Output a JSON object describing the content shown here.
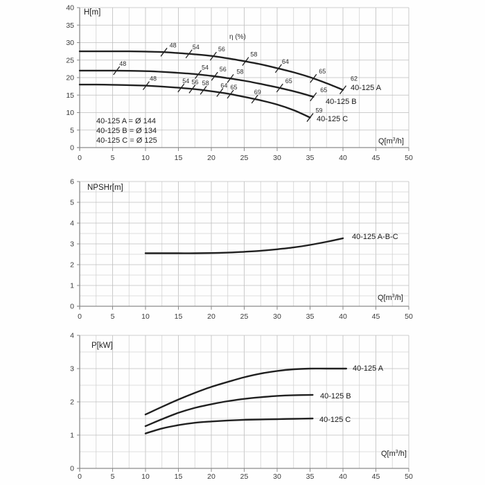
{
  "chart_data": [
    {
      "type": "line",
      "title": "H[m]",
      "ylabel": "H[m]",
      "xlabel": "Q[m3/h]",
      "xlabel_parts": {
        "pre": "Q[m",
        "sup": "3",
        "post": "/h]"
      },
      "annotation": "η (%)",
      "xlim": [
        0,
        50
      ],
      "ylim": [
        0,
        40
      ],
      "x_ticks": [
        0,
        5,
        10,
        15,
        20,
        25,
        30,
        35,
        40,
        45,
        50
      ],
      "y_ticks": [
        0,
        5,
        10,
        15,
        20,
        25,
        30,
        35,
        40
      ],
      "x_minor_step": 2.5,
      "grid": true,
      "legend": [
        "40-125 A = Ø 144",
        "40-125 B = Ø 134",
        "40-125 C = Ø 125"
      ],
      "series": [
        {
          "name": "40-125 A",
          "x": [
            0,
            2.5,
            5,
            7.5,
            10,
            12.5,
            15,
            17.5,
            20,
            22.5,
            25,
            27.5,
            30,
            32.5,
            35,
            37.5,
            40
          ],
          "y": [
            27.5,
            27.5,
            27.5,
            27.5,
            27.45,
            27.3,
            27.0,
            26.65,
            26.2,
            25.5,
            24.7,
            23.8,
            22.7,
            21.5,
            20.1,
            18.4,
            16.5
          ],
          "eff_marks": [
            {
              "v": "48",
              "q": 12.8,
              "dx": 13
            },
            {
              "v": "54",
              "q": 16.6,
              "dx": 10
            },
            {
              "v": "56",
              "q": 20.3,
              "dx": 12
            },
            {
              "v": "58",
              "q": 25.2,
              "dx": 12
            },
            {
              "v": "64",
              "q": 30.2,
              "dx": 10
            },
            {
              "v": "65",
              "q": 35.5,
              "dx": 13
            },
            {
              "v": "62",
              "q": 40,
              "dx": 16,
              "dy": -6
            }
          ]
        },
        {
          "name": "40-125 B",
          "x": [
            0,
            2.5,
            5,
            7.5,
            10,
            12.5,
            15,
            17.5,
            20,
            22.5,
            25,
            27.5,
            30,
            32.5,
            35,
            35.5
          ],
          "y": [
            22,
            22,
            22,
            21.95,
            21.85,
            21.65,
            21.35,
            21.0,
            20.5,
            19.85,
            19.1,
            18.2,
            17.2,
            16.1,
            14.8,
            14.5
          ],
          "eff_marks": [
            {
              "v": "48",
              "q": 5.6,
              "dx": 9
            },
            {
              "v": "54",
              "q": 18,
              "dx": 10
            },
            {
              "v": "56",
              "q": 20.5,
              "dx": 12
            },
            {
              "v": "58",
              "q": 22.9,
              "dx": 14
            },
            {
              "v": "65",
              "q": 30.4,
              "dx": 13
            },
            {
              "v": "65",
              "q": 35.5,
              "dx": 15
            }
          ]
        },
        {
          "name": "40-125 C",
          "x": [
            0,
            2.5,
            5,
            7.5,
            10,
            12.5,
            15,
            17.5,
            20,
            22.5,
            25,
            27.5,
            30,
            32.5,
            35
          ],
          "y": [
            18,
            18,
            17.95,
            17.85,
            17.7,
            17.45,
            17.1,
            16.7,
            16.1,
            15.4,
            14.5,
            13.5,
            12.3,
            10.7,
            8.6
          ],
          "eff_marks": [
            {
              "v": "48",
              "q": 10.1,
              "dx": 10
            },
            {
              "v": "54",
              "q": 15.4,
              "dx": 7
            },
            {
              "v": "56",
              "q": 17.1,
              "dx": 4
            },
            {
              "v": "58",
              "q": 18.8,
              "dx": 3
            },
            {
              "v": "64",
              "q": 21.3,
              "dx": 6
            },
            {
              "v": "65",
              "q": 22.9,
              "dx": 5
            },
            {
              "v": "69",
              "q": 26.6,
              "dx": 4
            },
            {
              "v": "59",
              "q": 35,
              "dx": 13
            }
          ]
        }
      ]
    },
    {
      "type": "line",
      "title": "NPSHr[m]",
      "ylabel": "NPSHr[m]",
      "xlabel": "Q[m3/h]",
      "xlabel_parts": {
        "pre": "Q[m",
        "sup": "3",
        "post": "/h]"
      },
      "xlim": [
        0,
        50
      ],
      "ylim": [
        0,
        6
      ],
      "x_ticks": [
        0,
        5,
        10,
        15,
        20,
        25,
        30,
        35,
        40,
        45,
        50
      ],
      "y_ticks": [
        0,
        1,
        2,
        3,
        4,
        5,
        6
      ],
      "x_minor_step": 2.5,
      "y_minor_step": 0.5,
      "grid": true,
      "series": [
        {
          "name": "40-125 A-B-C",
          "x": [
            10,
            12.5,
            15,
            17.5,
            20,
            22.5,
            25,
            27.5,
            30,
            32.5,
            35,
            37.5,
            40
          ],
          "y": [
            2.55,
            2.55,
            2.55,
            2.55,
            2.56,
            2.58,
            2.62,
            2.67,
            2.74,
            2.83,
            2.95,
            3.1,
            3.27
          ]
        }
      ]
    },
    {
      "type": "line",
      "title": "P[kW]",
      "ylabel": "P[kW]",
      "xlabel": "Q[m3/h]",
      "xlabel_parts": {
        "pre": "Q[m",
        "sup": "3",
        "post": "/h]"
      },
      "xlim": [
        0,
        50
      ],
      "ylim": [
        0,
        4
      ],
      "x_ticks": [
        0,
        5,
        10,
        15,
        20,
        25,
        30,
        35,
        40,
        45,
        50
      ],
      "y_ticks": [
        0,
        1,
        2,
        3,
        4
      ],
      "x_minor_step": 2.5,
      "y_minor_step": 0.5,
      "grid": true,
      "series": [
        {
          "name": "40-125 A",
          "x": [
            10,
            12.5,
            15,
            17.5,
            20,
            22.5,
            25,
            27.5,
            30,
            32.5,
            35,
            37.5,
            40.5
          ],
          "y": [
            1.62,
            1.85,
            2.07,
            2.27,
            2.45,
            2.6,
            2.74,
            2.85,
            2.93,
            2.98,
            3.0,
            3.0,
            3.0
          ]
        },
        {
          "name": "40-125 B",
          "x": [
            10,
            12.5,
            15,
            17.5,
            20,
            22.5,
            25,
            27.5,
            30,
            32.5,
            35.4
          ],
          "y": [
            1.27,
            1.48,
            1.67,
            1.82,
            1.93,
            2.02,
            2.09,
            2.14,
            2.18,
            2.2,
            2.21
          ]
        },
        {
          "name": "40-125 C",
          "x": [
            10,
            12.5,
            15,
            17.5,
            20,
            22.5,
            25,
            27.5,
            30,
            32.5,
            35.4
          ],
          "y": [
            1.05,
            1.2,
            1.3,
            1.37,
            1.41,
            1.44,
            1.46,
            1.47,
            1.48,
            1.49,
            1.5
          ]
        }
      ]
    }
  ],
  "colors": {
    "curve": "#202020",
    "grid_minor": "#d2d2d2",
    "grid_major": "#bdbdbd",
    "axis": "#8a8a8a",
    "tick_text": "#3a3a3a",
    "eff_text": "#2a2a2a"
  }
}
